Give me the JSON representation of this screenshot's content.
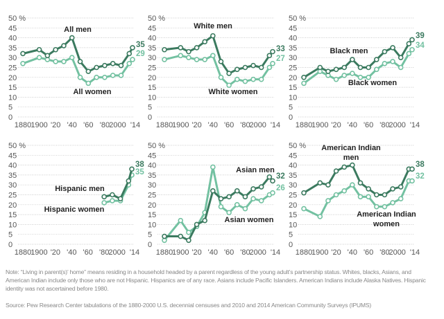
{
  "colors": {
    "men": "#3b7a5f",
    "women": "#73c1a1",
    "grid": "#bbbbbb",
    "axis_text": "#555555"
  },
  "chart_data": [
    {
      "type": "line",
      "x": [
        1880,
        1900,
        1910,
        1920,
        1930,
        1940,
        1950,
        1960,
        1970,
        1980,
        1990,
        2000,
        2010,
        2014
      ],
      "ylim": [
        0,
        50
      ],
      "yticks": [
        "50 %",
        "45",
        "40",
        "35",
        "30",
        "25",
        "20",
        "15",
        "10",
        "5",
        "0"
      ],
      "xticks": [
        "1880",
        "1900",
        "'20",
        "'40",
        "'60",
        "'80",
        "2000",
        "'14"
      ],
      "grid": "dotted horizontal",
      "series": [
        {
          "name": "All men",
          "values": [
            32,
            34,
            31,
            34,
            36,
            40,
            28,
            23,
            25,
            26,
            27,
            26,
            32,
            35
          ],
          "end_label": "35"
        },
        {
          "name": "All women",
          "values": [
            27,
            30,
            29,
            28,
            28,
            30,
            20,
            17,
            20,
            20,
            21,
            21,
            27,
            29
          ],
          "end_label": "29"
        }
      ]
    },
    {
      "type": "line",
      "x": [
        1880,
        1900,
        1910,
        1920,
        1930,
        1940,
        1950,
        1960,
        1970,
        1980,
        1990,
        2000,
        2010,
        2014
      ],
      "ylim": [
        0,
        50
      ],
      "yticks": [
        "50 %",
        "45",
        "40",
        "35",
        "30",
        "25",
        "20",
        "15",
        "10",
        "5",
        "0"
      ],
      "xticks": [
        "1880",
        "1900",
        "'20",
        "'40",
        "'60",
        "'80",
        "2000",
        "'14"
      ],
      "grid": "dotted horizontal",
      "series": [
        {
          "name": "White men",
          "values": [
            34,
            35,
            33,
            35,
            38,
            41,
            28,
            22,
            24,
            25,
            26,
            25,
            31,
            33
          ],
          "end_label": "33"
        },
        {
          "name": "White women",
          "values": [
            29,
            31,
            30,
            29,
            29,
            31,
            20,
            16,
            19,
            18,
            19,
            19,
            25,
            27
          ],
          "end_label": "27"
        }
      ]
    },
    {
      "type": "line",
      "x": [
        1880,
        1900,
        1910,
        1920,
        1930,
        1940,
        1950,
        1960,
        1970,
        1980,
        1990,
        2000,
        2010,
        2014
      ],
      "ylim": [
        0,
        50
      ],
      "yticks": [
        "50 %",
        "45",
        "40",
        "35",
        "30",
        "25",
        "20",
        "15",
        "10",
        "5",
        "0"
      ],
      "xticks": [
        "1880",
        "1900",
        "'20",
        "'40",
        "'60",
        "'80",
        "2000",
        "'14"
      ],
      "grid": "dotted horizontal",
      "series": [
        {
          "name": "Black men",
          "values": [
            20,
            25,
            23,
            24,
            25,
            29,
            25,
            25,
            29,
            33,
            35,
            30,
            37,
            39
          ],
          "end_label": "39"
        },
        {
          "name": "Black women",
          "values": [
            17,
            23,
            21,
            19,
            21,
            22,
            20,
            20,
            24,
            27,
            28,
            25,
            32,
            34
          ],
          "end_label": "34"
        }
      ]
    },
    {
      "type": "line",
      "x": [
        1980,
        1990,
        2000,
        2010,
        2014
      ],
      "ylim": [
        0,
        50
      ],
      "yticks": [
        "50 %",
        "45",
        "40",
        "35",
        "30",
        "25",
        "20",
        "15",
        "10",
        "5",
        "0"
      ],
      "xticks": [
        "1880",
        "1900",
        "'20",
        "'40",
        "'60",
        "'80",
        "2000",
        "'14"
      ],
      "grid": "dotted horizontal",
      "series": [
        {
          "name": "Hispanic men",
          "values": [
            24,
            25,
            23,
            32,
            38
          ],
          "end_label": "38"
        },
        {
          "name": "Hispanic women",
          "values": [
            21,
            22,
            22,
            30,
            35
          ],
          "end_label": "35"
        }
      ]
    },
    {
      "type": "line",
      "x": [
        1880,
        1900,
        1910,
        1920,
        1930,
        1940,
        1950,
        1960,
        1970,
        1980,
        1990,
        2000,
        2010,
        2014
      ],
      "ylim": [
        0,
        50
      ],
      "yticks": [
        "50 %",
        "45",
        "40",
        "35",
        "30",
        "25",
        "20",
        "15",
        "10",
        "5",
        "0"
      ],
      "xticks": [
        "1880",
        "1900",
        "'20",
        "'40",
        "'60",
        "'80",
        "2000",
        "'14"
      ],
      "grid": "dotted horizontal",
      "series": [
        {
          "name": "Asian men",
          "values": [
            4,
            4,
            2,
            10,
            12,
            27,
            23,
            24,
            27,
            24,
            28,
            29,
            34,
            32
          ],
          "end_label": "32"
        },
        {
          "name": "Asian women",
          "values": [
            2,
            12,
            6,
            9,
            16,
            39,
            19,
            16,
            20,
            18,
            23,
            22,
            25,
            26
          ],
          "end_label": "26"
        }
      ]
    },
    {
      "type": "line",
      "x": [
        1880,
        1900,
        1910,
        1920,
        1930,
        1940,
        1950,
        1960,
        1970,
        1980,
        1990,
        2000,
        2010,
        2014
      ],
      "ylim": [
        0,
        50
      ],
      "yticks": [
        "50 %",
        "45",
        "40",
        "35",
        "30",
        "25",
        "20",
        "15",
        "10",
        "5",
        "0"
      ],
      "xticks": [
        "1880",
        "1900",
        "'20",
        "'40",
        "'60",
        "'80",
        "2000",
        "'14"
      ],
      "grid": "dotted horizontal",
      "series": [
        {
          "name": "American Indian men",
          "label_lines": [
            "American Indian",
            "men"
          ],
          "values": [
            26,
            31,
            30,
            37,
            39,
            40,
            31,
            28,
            25,
            25,
            28,
            29,
            38,
            38
          ],
          "end_label": "38"
        },
        {
          "name": "American Indian women",
          "label_lines": [
            "American Indian",
            "women"
          ],
          "values": [
            18,
            14,
            22,
            25,
            27,
            30,
            24,
            24,
            19,
            19,
            21,
            23,
            32,
            32
          ],
          "end_label": "32"
        }
      ]
    }
  ],
  "footer": {
    "note": "Note: “Living in parent(s)’ home” means residing in a household headed by a parent regardless of the young adult’s partnership status. Whites, blacks, Asians, and American Indian include only those who are not Hispanic. Hispanics are of any race. Asians include Pacific Islanders. American Indians include Alaska Natives. Hispanic identity was not ascertained before 1980.",
    "source": "Source: Pew Research Center tabulations of the 1880-2000 U.S. decennial censuses and 2010 and 2014 American Community Surveys (IPUMS)"
  }
}
